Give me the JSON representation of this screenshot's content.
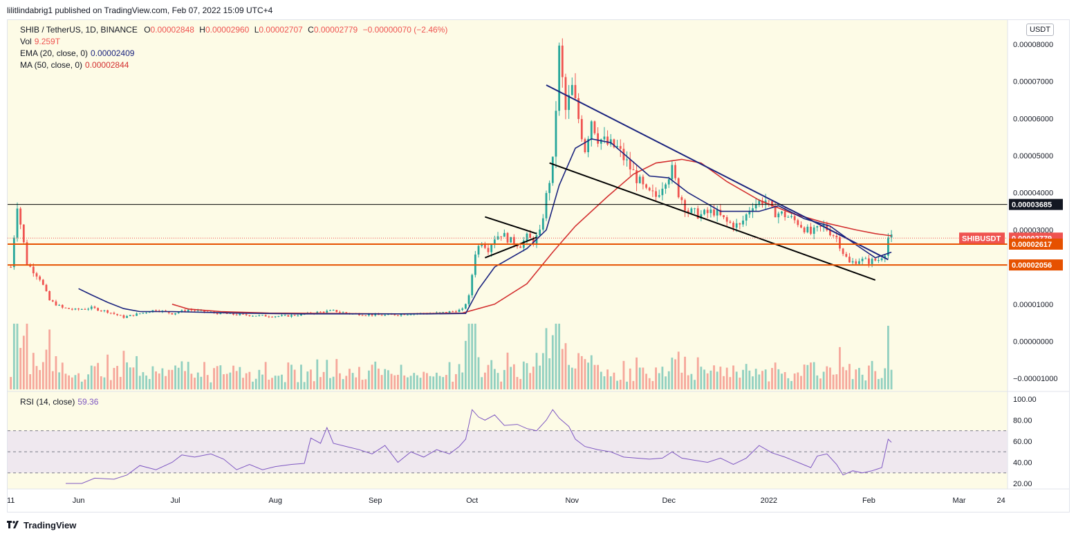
{
  "publisher_line": "lilitlindabrig1 published on TradingView.com, Feb 07, 2022 15:09 UTC+4",
  "footer_brand": "TradingView",
  "legend": {
    "symbol": "SHIB / TetherUS, 1D, BINANCE",
    "open_label": "O",
    "open": "0.00002848",
    "high_label": "H",
    "high": "0.00002960",
    "low_label": "L",
    "low": "0.00002707",
    "close_label": "C",
    "close": "0.00002779",
    "change": "−0.00000070 (−2.46%)",
    "vol_label": "Vol",
    "vol": "9.259T",
    "ema_label": "EMA (20, close, 0)",
    "ema": "0.00002409",
    "ma_label": "MA (50, close, 0)",
    "ma": "0.00002844",
    "rsi_label": "RSI (14, close)",
    "rsi": "59.36"
  },
  "currency_button": "USDT",
  "colors": {
    "background": "#fdfbe6",
    "up": "#26a69a",
    "down": "#ef5350",
    "ema": "#1a237e",
    "ma": "#d32f2f",
    "hline": "#e65100",
    "rsi": "#7e57c2",
    "rsi_band": "#efe8ef"
  },
  "price_markers": [
    {
      "label": "0.00003685",
      "value": 3.685e-05,
      "style": "black"
    },
    {
      "label": "0.00002779",
      "value": 2.779e-05,
      "style": "red"
    },
    {
      "label": "0.00002617",
      "value": 2.617e-05,
      "style": "orange"
    },
    {
      "label": "0.00002056",
      "value": 2.056e-05,
      "style": "orange"
    }
  ],
  "symbol_tag": "SHIBUSDT",
  "chart_data": {
    "type": "candlestick",
    "y_ticks": [
      "0.00008000",
      "0.00007000",
      "0.00006000",
      "0.00005000",
      "0.00004000",
      "0.00003000",
      "0.00001000",
      "0.00000000",
      "−0.00001000"
    ],
    "y_tick_values": [
      8e-05,
      7e-05,
      6e-05,
      5e-05,
      4e-05,
      3e-05,
      1e-05,
      0.0,
      -1e-05
    ],
    "x_ticks": [
      "11",
      "Jun",
      "Jul",
      "Aug",
      "Sep",
      "Oct",
      "Nov",
      "Dec",
      "2022",
      "Feb",
      "Mar",
      "24"
    ],
    "x_tick_days": [
      0,
      21,
      51,
      82,
      113,
      143,
      174,
      204,
      235,
      266,
      294,
      307
    ],
    "ylim": [
      -1.35e-05,
      8.65e-05
    ],
    "xlim": [
      -1,
      309
    ],
    "close_anchors": [
      [
        0,
        2e-05
      ],
      [
        2,
        3.7e-05
      ],
      [
        5,
        2.1e-05
      ],
      [
        9,
        1.7e-05
      ],
      [
        12,
        1.1e-05
      ],
      [
        16,
        9e-06
      ],
      [
        20,
        8.5e-06
      ],
      [
        25,
        9e-06
      ],
      [
        30,
        8e-06
      ],
      [
        35,
        6.5e-06
      ],
      [
        40,
        7.5e-06
      ],
      [
        45,
        8.5e-06
      ],
      [
        50,
        7.5e-06
      ],
      [
        55,
        8.5e-06
      ],
      [
        60,
        8e-06
      ],
      [
        65,
        7.5e-06
      ],
      [
        70,
        7.2e-06
      ],
      [
        75,
        7e-06
      ],
      [
        80,
        6.8e-06
      ],
      [
        85,
        6.8e-06
      ],
      [
        90,
        7.2e-06
      ],
      [
        95,
        7.8e-06
      ],
      [
        100,
        8.2e-06
      ],
      [
        105,
        7.5e-06
      ],
      [
        110,
        7.2e-06
      ],
      [
        115,
        7e-06
      ],
      [
        120,
        7.2e-06
      ],
      [
        125,
        7.5e-06
      ],
      [
        130,
        7.5e-06
      ],
      [
        135,
        7.8e-06
      ],
      [
        140,
        8.5e-06
      ],
      [
        142,
        1.2e-05
      ],
      [
        144,
        2.4e-05
      ],
      [
        146,
        2.7e-05
      ],
      [
        148,
        2.5e-05
      ],
      [
        150,
        2.8e-05
      ],
      [
        152,
        2.9e-05
      ],
      [
        155,
        2.7e-05
      ],
      [
        158,
        2.6e-05
      ],
      [
        160,
        2.8e-05
      ],
      [
        162,
        2.7e-05
      ],
      [
        164,
        2.9e-05
      ],
      [
        166,
        3.9e-05
      ],
      [
        168,
        4.8e-05
      ],
      [
        170,
        7.8e-05
      ],
      [
        172,
        6.2e-05
      ],
      [
        174,
        6.8e-05
      ],
      [
        176,
        6e-05
      ],
      [
        178,
        5.2e-05
      ],
      [
        180,
        6e-05
      ],
      [
        182,
        5.5e-05
      ],
      [
        185,
        5.3e-05
      ],
      [
        188,
        5.2e-05
      ],
      [
        191,
        4.8e-05
      ],
      [
        194,
        4.4e-05
      ],
      [
        197,
        4e-05
      ],
      [
        200,
        3.9e-05
      ],
      [
        203,
        4.4e-05
      ],
      [
        205,
        4.6e-05
      ],
      [
        207,
        4e-05
      ],
      [
        210,
        3.5e-05
      ],
      [
        214,
        3.4e-05
      ],
      [
        218,
        3.5e-05
      ],
      [
        222,
        3.2e-05
      ],
      [
        226,
        3.1e-05
      ],
      [
        230,
        3.7e-05
      ],
      [
        234,
        3.8e-05
      ],
      [
        236,
        3.5e-05
      ],
      [
        240,
        3.4e-05
      ],
      [
        244,
        3.2e-05
      ],
      [
        248,
        2.9e-05
      ],
      [
        252,
        3.1e-05
      ],
      [
        256,
        2.8e-05
      ],
      [
        258,
        2.4e-05
      ],
      [
        260,
        2.1e-05
      ],
      [
        263,
        2.2e-05
      ],
      [
        266,
        2.15e-05
      ],
      [
        269,
        2.2e-05
      ],
      [
        271,
        2.4e-05
      ],
      [
        272,
        2.8e-05
      ],
      [
        273,
        2.78e-05
      ]
    ],
    "volume_ratio": 0.92,
    "ema20_points": [
      [
        21,
        1.42e-05
      ],
      [
        25,
        1.25e-05
      ],
      [
        30,
        1.05e-05
      ],
      [
        35,
        8.8e-06
      ],
      [
        40,
        8e-06
      ],
      [
        50,
        8e-06
      ],
      [
        70,
        7.6e-06
      ],
      [
        90,
        7.4e-06
      ],
      [
        110,
        7.4e-06
      ],
      [
        130,
        7.4e-06
      ],
      [
        141,
        7.5e-06
      ],
      [
        145,
        1.4e-05
      ],
      [
        150,
        2e-05
      ],
      [
        160,
        2.5e-05
      ],
      [
        166,
        3e-05
      ],
      [
        170,
        4.2e-05
      ],
      [
        175,
        5.2e-05
      ],
      [
        180,
        5.45e-05
      ],
      [
        186,
        5.35e-05
      ],
      [
        192,
        4.9e-05
      ],
      [
        198,
        4.45e-05
      ],
      [
        204,
        4.4e-05
      ],
      [
        210,
        4e-05
      ],
      [
        220,
        3.5e-05
      ],
      [
        232,
        3.5e-05
      ],
      [
        238,
        3.65e-05
      ],
      [
        246,
        3.3e-05
      ],
      [
        254,
        3.1e-05
      ],
      [
        262,
        2.6e-05
      ],
      [
        268,
        2.25e-05
      ],
      [
        273,
        2.4e-05
      ]
    ],
    "ma50_points": [
      [
        50,
        1e-05
      ],
      [
        55,
        8.7e-06
      ],
      [
        65,
        8e-06
      ],
      [
        80,
        7.6e-06
      ],
      [
        100,
        7.5e-06
      ],
      [
        120,
        7.4e-06
      ],
      [
        140,
        7.6e-06
      ],
      [
        150,
        1e-05
      ],
      [
        160,
        1.55e-05
      ],
      [
        168,
        2.4e-05
      ],
      [
        175,
        3.1e-05
      ],
      [
        185,
        3.9e-05
      ],
      [
        193,
        4.5e-05
      ],
      [
        200,
        4.8e-05
      ],
      [
        208,
        4.9e-05
      ],
      [
        214,
        4.8e-05
      ],
      [
        222,
        4.3e-05
      ],
      [
        232,
        3.8e-05
      ],
      [
        242,
        3.45e-05
      ],
      [
        252,
        3.2e-05
      ],
      [
        262,
        3e-05
      ],
      [
        268,
        2.9e-05
      ],
      [
        273,
        2.84e-05
      ]
    ],
    "trendlines": [
      {
        "color": "#1a237e",
        "points": [
          [
            166,
            6.9e-05
          ],
          [
            272,
            2.2e-05
          ]
        ]
      },
      {
        "color": "#000000",
        "points": [
          [
            167,
            4.8e-05
          ],
          [
            268,
            1.65e-05
          ]
        ]
      },
      {
        "color": "#000000",
        "points": [
          [
            147,
            3.35e-05
          ],
          [
            163,
            2.9e-05
          ]
        ]
      },
      {
        "color": "#000000",
        "points": [
          [
            147,
            2.25e-05
          ],
          [
            163,
            2.8e-05
          ]
        ]
      }
    ],
    "horizontal_lines": [
      {
        "value": 3.685e-05,
        "color": "#000000"
      },
      {
        "value": 2.617e-05,
        "color": "#e65100"
      },
      {
        "value": 2.056e-05,
        "color": "#e65100"
      }
    ],
    "rsi": {
      "ticks": [
        "100.00",
        "80.00",
        "60.00",
        "40.00",
        "20.00"
      ],
      "tick_values": [
        100,
        80,
        60,
        40,
        20
      ],
      "band": [
        30,
        70
      ],
      "mid": 50,
      "points": [
        [
          17,
          20
        ],
        [
          22,
          20
        ],
        [
          26,
          25
        ],
        [
          32,
          24
        ],
        [
          36,
          28
        ],
        [
          40,
          37
        ],
        [
          45,
          33
        ],
        [
          50,
          40
        ],
        [
          53,
          47
        ],
        [
          57,
          45
        ],
        [
          62,
          48
        ],
        [
          66,
          43
        ],
        [
          70,
          33
        ],
        [
          74,
          38
        ],
        [
          78,
          33
        ],
        [
          82,
          36
        ],
        [
          87,
          38
        ],
        [
          91,
          39
        ],
        [
          93,
          63
        ],
        [
          96,
          58
        ],
        [
          98,
          73
        ],
        [
          100,
          58
        ],
        [
          104,
          55
        ],
        [
          108,
          52
        ],
        [
          112,
          48
        ],
        [
          116,
          56
        ],
        [
          120,
          40
        ],
        [
          124,
          50
        ],
        [
          128,
          45
        ],
        [
          132,
          52
        ],
        [
          136,
          48
        ],
        [
          139,
          55
        ],
        [
          141,
          62
        ],
        [
          143,
          90
        ],
        [
          145,
          83
        ],
        [
          147,
          80
        ],
        [
          150,
          85
        ],
        [
          153,
          75
        ],
        [
          157,
          76
        ],
        [
          160,
          72
        ],
        [
          163,
          70
        ],
        [
          166,
          80
        ],
        [
          168,
          90
        ],
        [
          170,
          82
        ],
        [
          173,
          74
        ],
        [
          175,
          62
        ],
        [
          178,
          55
        ],
        [
          182,
          52
        ],
        [
          186,
          50
        ],
        [
          190,
          45
        ],
        [
          194,
          44
        ],
        [
          198,
          43
        ],
        [
          202,
          44
        ],
        [
          205,
          50
        ],
        [
          208,
          44
        ],
        [
          212,
          42
        ],
        [
          216,
          40
        ],
        [
          220,
          44
        ],
        [
          224,
          38
        ],
        [
          228,
          44
        ],
        [
          232,
          56
        ],
        [
          236,
          49
        ],
        [
          240,
          45
        ],
        [
          244,
          40
        ],
        [
          248,
          35
        ],
        [
          250,
          46
        ],
        [
          253,
          48
        ],
        [
          256,
          38
        ],
        [
          258,
          28
        ],
        [
          261,
          32
        ],
        [
          264,
          30
        ],
        [
          267,
          32
        ],
        [
          270,
          35
        ],
        [
          272,
          62
        ],
        [
          273,
          59
        ]
      ]
    }
  }
}
